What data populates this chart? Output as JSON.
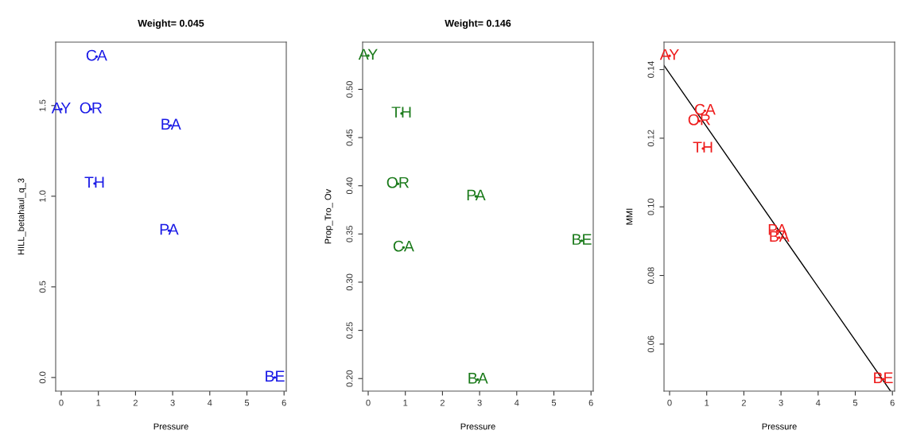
{
  "chart_data": [
    {
      "type": "scatter",
      "title": "Weight= 0.045",
      "xlabel": "Pressure",
      "ylabel": "HILL_betahaul_q_3",
      "marker": "circle",
      "grid": false,
      "xlim": [
        -0.15,
        6.06
      ],
      "xticks": [
        0,
        1,
        2,
        3,
        4,
        5,
        6
      ],
      "ylim": [
        -0.075,
        1.85
      ],
      "yticks": [
        {
          "value": 0,
          "label": "0.0"
        },
        0.5,
        {
          "value": 1,
          "label": "1.0"
        },
        1.5
      ],
      "series": [
        {
          "color": "#1a1ae6",
          "x": [
            0,
            0.8,
            0.9,
            0.95,
            2.9,
            2.95,
            5.75
          ],
          "values": [
            1.48,
            1.48,
            1.07,
            1.77,
            0.81,
            1.39,
            0.0
          ],
          "value_labels": [
            "AY",
            "OR",
            "TH",
            "CA",
            "PA",
            "BA",
            "BE"
          ]
        }
      ]
    },
    {
      "type": "scatter",
      "title": "Weight= 0.146",
      "xlabel": "Pressure",
      "ylabel": "Prop_Tro_ Ov",
      "marker": "circle",
      "grid": false,
      "xlim": [
        -0.15,
        6.06
      ],
      "xticks": [
        0,
        1,
        2,
        3,
        4,
        5,
        6
      ],
      "ylim": [
        0.187,
        0.549
      ],
      "yticks": [
        {
          "value": 0.2,
          "label": "0.20"
        },
        0.25,
        {
          "value": 0.3,
          "label": "0.30"
        },
        0.35,
        {
          "value": 0.4,
          "label": "0.40"
        },
        0.45,
        {
          "value": 0.5,
          "label": "0.50"
        }
      ],
      "series": [
        {
          "color": "#1a7a1a",
          "x": [
            0,
            0.8,
            0.9,
            0.95,
            2.9,
            2.95,
            5.75
          ],
          "values": [
            0.535,
            0.402,
            0.475,
            0.336,
            0.389,
            0.199,
            0.343
          ],
          "value_labels": [
            "AY",
            "OR",
            "TH",
            "CA",
            "PA",
            "BA",
            "BE"
          ]
        }
      ]
    },
    {
      "type": "scatter",
      "xlabel": "Pressure",
      "ylabel": "MMI",
      "grid": false,
      "xlim": [
        -0.15,
        6.06
      ],
      "xticks": [
        0,
        1,
        2,
        3,
        4,
        5,
        6
      ],
      "ylim": [
        0.0463,
        0.148
      ],
      "yticks": [
        0.06,
        0.08,
        {
          "value": 0.1,
          "label": "0.10"
        },
        0.12,
        0.14
      ],
      "series": [
        {
          "color": "#ee1c1c",
          "marker": "circle",
          "x": [
            0,
            0.8,
            0.9,
            0.95,
            2.9,
            2.95,
            5.75
          ],
          "values": [
            0.144,
            0.125,
            0.117,
            0.128,
            0.093,
            0.091,
            0.0498
          ],
          "value_labels": [
            "AY",
            "OR",
            "TH",
            "CA",
            "PA",
            "BA",
            "BE"
          ]
        },
        {
          "type": "line",
          "color": "#000000",
          "x": [
            -0.15,
            5.95
          ],
          "values": [
            0.1412,
            0.0463
          ]
        }
      ]
    }
  ]
}
